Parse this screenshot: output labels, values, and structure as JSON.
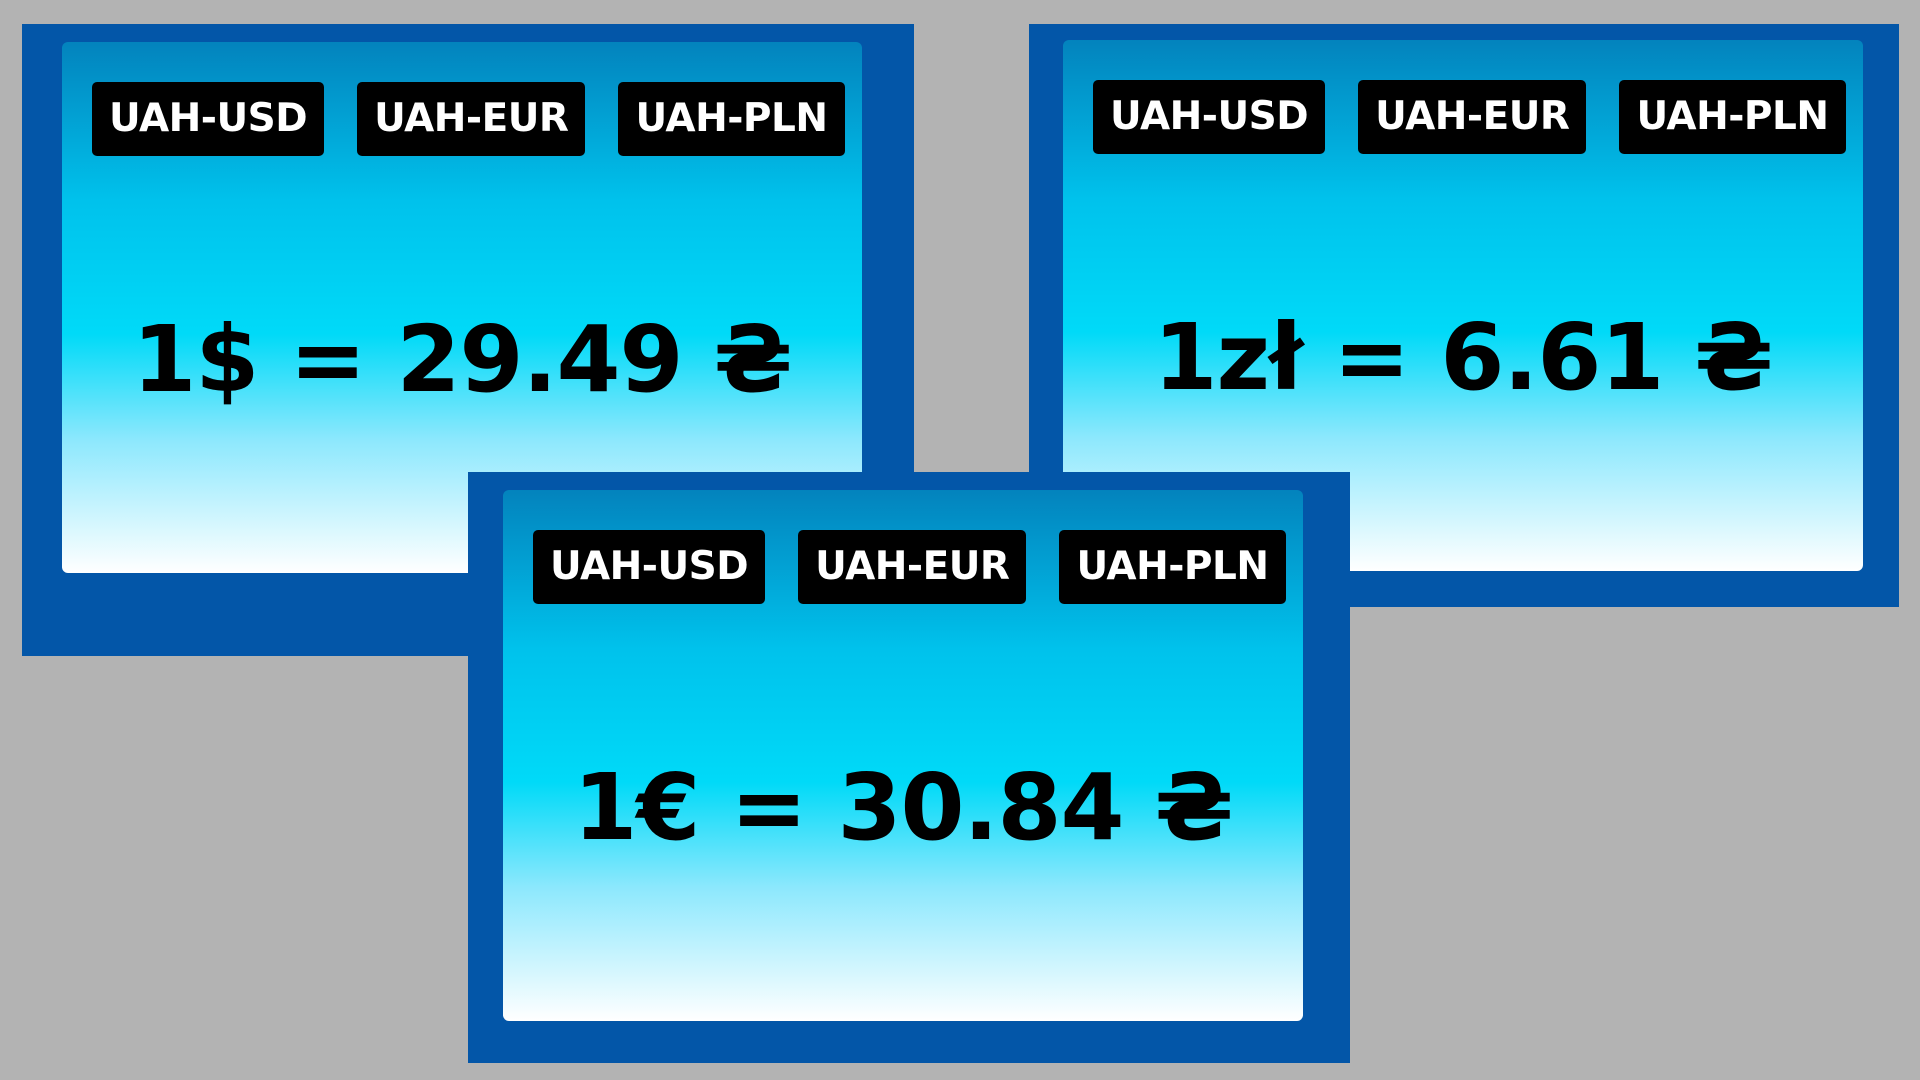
{
  "widgets": [
    {
      "tabs": [
        "UAH-USD",
        "UAH-EUR",
        "UAH-PLN"
      ],
      "rate_text": "1$ = 29.49 ₴",
      "active_pair": "UAH-USD"
    },
    {
      "tabs": [
        "UAH-USD",
        "UAH-EUR",
        "UAH-PLN"
      ],
      "rate_text": "1zł = 6.61 ₴",
      "active_pair": "UAH-PLN"
    },
    {
      "tabs": [
        "UAH-USD",
        "UAH-EUR",
        "UAH-PLN"
      ],
      "rate_text": "1€ = 30.84 ₴",
      "active_pair": "UAH-EUR"
    }
  ],
  "colors": {
    "background": "#b3b3b3",
    "frame": "#0356a8",
    "tab_bg": "#000000",
    "tab_text": "#ffffff",
    "gradient_top": "#0383bd",
    "gradient_mid": "#00daf8",
    "gradient_bottom": "#ffffff"
  }
}
